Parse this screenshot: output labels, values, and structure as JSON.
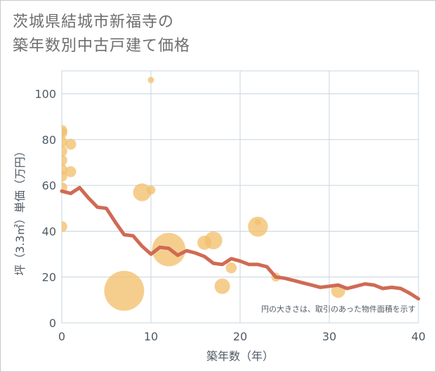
{
  "title_line1": "茨城県結城市新福寺の",
  "title_line2": "築年数別中古戸建て価格",
  "colors": {
    "bubble": "#f2c06e",
    "line": "#d06a54",
    "grid": "#c8d4df",
    "axis": "#505a64"
  },
  "chart_data": {
    "type": "scatter",
    "xlabel": "築年数（年）",
    "ylabel": "坪（3.3㎡）単価（万円）",
    "xlim": [
      0,
      40
    ],
    "ylim": [
      0,
      110
    ],
    "x_ticks": [
      0,
      10,
      20,
      30,
      40
    ],
    "y_ticks": [
      0,
      20,
      40,
      60,
      80,
      100
    ],
    "note": "円の大きさは、取引のあった物件面積を示す",
    "bubbles": [
      {
        "x": 0,
        "y": 84,
        "size": 3
      },
      {
        "x": 0,
        "y": 83,
        "size": 3
      },
      {
        "x": 0,
        "y": 79,
        "size": 3
      },
      {
        "x": 0,
        "y": 75,
        "size": 3
      },
      {
        "x": 0,
        "y": 71,
        "size": 3
      },
      {
        "x": 0,
        "y": 67,
        "size": 3
      },
      {
        "x": 0,
        "y": 64,
        "size": 3
      },
      {
        "x": 0,
        "y": 59,
        "size": 3
      },
      {
        "x": 0,
        "y": 42,
        "size": 3
      },
      {
        "x": 1,
        "y": 78,
        "size": 3
      },
      {
        "x": 1,
        "y": 66,
        "size": 3
      },
      {
        "x": 7,
        "y": 14,
        "size": 40
      },
      {
        "x": 9,
        "y": 57,
        "size": 8
      },
      {
        "x": 10,
        "y": 106,
        "size": 1
      },
      {
        "x": 10,
        "y": 58,
        "size": 2
      },
      {
        "x": 12,
        "y": 32,
        "size": 28
      },
      {
        "x": 16,
        "y": 35,
        "size": 5
      },
      {
        "x": 17,
        "y": 36,
        "size": 8
      },
      {
        "x": 18,
        "y": 16,
        "size": 6
      },
      {
        "x": 19,
        "y": 24,
        "size": 3
      },
      {
        "x": 22,
        "y": 42,
        "size": 10
      },
      {
        "x": 22,
        "y": 44,
        "size": 1
      },
      {
        "x": 24,
        "y": 20,
        "size": 2
      },
      {
        "x": 31,
        "y": 14,
        "size": 5
      }
    ],
    "trend": {
      "x": [
        0,
        1,
        2,
        3,
        4,
        5,
        6,
        7,
        8,
        9,
        10,
        11,
        12,
        13,
        14,
        15,
        16,
        17,
        18,
        19,
        20,
        21,
        22,
        23,
        24,
        25,
        26,
        27,
        28,
        29,
        30,
        31,
        32,
        33,
        34,
        35,
        36,
        37,
        38,
        39,
        40
      ],
      "y": [
        57.5,
        56.5,
        59,
        54.5,
        50.5,
        50,
        44,
        38.5,
        38,
        33.5,
        30,
        33,
        32.5,
        29.5,
        31.5,
        30.5,
        29,
        26,
        25.5,
        28,
        27,
        25.5,
        25.5,
        24.5,
        20,
        19.5,
        18.5,
        17.5,
        16.5,
        15.5,
        16,
        16.5,
        15,
        16,
        17,
        16.5,
        15,
        15.5,
        15,
        13,
        10.5
      ]
    }
  }
}
